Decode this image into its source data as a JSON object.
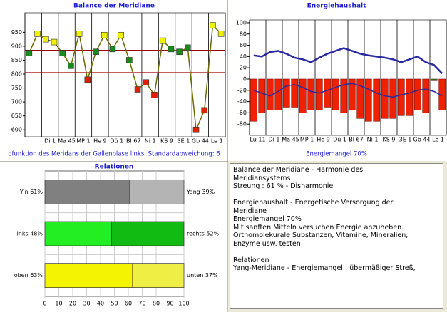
{
  "chart_data": [
    {
      "type": "line",
      "title": "Balance der Meridiane",
      "caption": "ofunktion des Meridans der Gallenblase links. Standardabweichung: 6",
      "categories": [
        null,
        null,
        "Di 1",
        null,
        "Ma 45",
        null,
        "MP 1",
        null,
        "He 9",
        null,
        "Dü 1",
        null,
        "Bl 67",
        null,
        "Ni 1",
        null,
        "KS 9",
        null,
        "3E 1",
        null,
        "Gb 44",
        null,
        "Le 1",
        null
      ],
      "series": [
        {
          "color": "#6b6b00",
          "values": [
            875,
            945,
            925,
            915,
            875,
            830,
            945,
            780,
            880,
            940,
            890,
            940,
            850,
            745,
            770,
            725,
            920,
            890,
            880,
            895,
            600,
            670,
            975,
            945
          ],
          "point_colors": [
            "#1a8a1a",
            "#f0f000",
            "#f0f000",
            "#f0f000",
            "#1a8a1a",
            "#1a8a1a",
            "#f0f000",
            "#e02000",
            "#1a8a1a",
            "#f0f000",
            "#1a8a1a",
            "#f0f000",
            "#1a8a1a",
            "#e02000",
            "#e02000",
            "#e02000",
            "#f0f000",
            "#1a8a1a",
            "#1a8a1a",
            "#1a8a1a",
            "#e02000",
            "#e02000",
            "#f0f000",
            "#f0f000"
          ]
        }
      ],
      "reference_lines": [
        885,
        805
      ],
      "reference_color": "#a00000",
      "ylim": [
        575,
        1020
      ],
      "yticks": [
        600,
        650,
        700,
        750,
        800,
        850,
        900,
        950
      ]
    },
    {
      "type": "bar",
      "title": "Energiehaushalt",
      "caption": "Energiemangel  70%",
      "categories": [
        "Lu 11",
        null,
        "Di 1",
        null,
        "Ma 45",
        null,
        "MP 1",
        null,
        "He 9",
        null,
        "Dü 1",
        null,
        "Bl 67",
        null,
        "Ni 1",
        null,
        "KS 9",
        null,
        "3E 1",
        null,
        "Gb 44",
        null,
        "Le 1",
        null
      ],
      "series": [
        {
          "kind": "bar",
          "values": [
            -75,
            -60,
            -55,
            -55,
            -50,
            -50,
            -60,
            -55,
            -55,
            -50,
            -55,
            -60,
            -55,
            -70,
            -75,
            -75,
            -70,
            -70,
            -65,
            -65,
            -55,
            -60,
            -3,
            -55
          ],
          "colors": [
            "#ee2200",
            "#ee2200",
            "#ee2200",
            "#ee2200",
            "#ee2200",
            "#ee2200",
            "#ee2200",
            "#ee2200",
            "#ee2200",
            "#ee2200",
            "#ee2200",
            "#ee2200",
            "#ee2200",
            "#ee2200",
            "#ee2200",
            "#ee2200",
            "#ee2200",
            "#ee2200",
            "#ee2200",
            "#ee2200",
            "#ee2200",
            "#ee2200",
            "#1a8a1a",
            "#ee2200"
          ]
        },
        {
          "kind": "line",
          "color": "#2a2aa0",
          "width": 2.5,
          "values": [
            42,
            40,
            48,
            50,
            45,
            38,
            35,
            30,
            38,
            45,
            50,
            55,
            50,
            45,
            42,
            40,
            38,
            35,
            30,
            35,
            40,
            30,
            25,
            10
          ]
        },
        {
          "kind": "line",
          "color": "#2a2aa0",
          "width": 1.5,
          "values": [
            -20,
            -25,
            -30,
            -22,
            -12,
            -10,
            -15,
            -22,
            -25,
            -20,
            -15,
            -10,
            -8,
            -12,
            -18,
            -25,
            -30,
            -32,
            -28,
            -25,
            -20,
            -18,
            -22,
            -30
          ]
        }
      ],
      "ylim": [
        -100,
        105
      ],
      "yticks": [
        -80,
        -60,
        -40,
        -20,
        0,
        20,
        40,
        60,
        80,
        100
      ]
    },
    {
      "type": "stacked_barh",
      "title": "Relationen",
      "rows": [
        {
          "values": [
            61,
            39
          ],
          "value_labels": [
            "Yin 61%",
            "Yang 39%"
          ],
          "colors": [
            "#808080",
            "#b4b4b4"
          ]
        },
        {
          "values": [
            48,
            52
          ],
          "value_labels": [
            "links 48%",
            "rechts 52%"
          ],
          "colors": [
            "#22ee22",
            "#11bb11"
          ]
        },
        {
          "values": [
            63,
            37
          ],
          "value_labels": [
            "oben 63%",
            "unten 37%"
          ],
          "colors": [
            "#f4f400",
            "#eeee44"
          ]
        }
      ],
      "xlim": [
        0,
        100
      ],
      "xticks": [
        0,
        10,
        20,
        30,
        40,
        50,
        60,
        70,
        80,
        90,
        100
      ]
    }
  ],
  "text_panel": {
    "paragraphs": [
      [
        "Balance der Meridiane - Harmonie des",
        "Meridiansystems",
        "Streung : 61 % - Disharmonie"
      ],
      [
        "Energiehaushalt - Energetische Versorgung der",
        "Meridiane",
        "Energiemangel  70%",
        "Mit sanften Mitteln versuchen Energie anzuheben.",
        "Orthomolekurale Substanzen, Vitamine, Mineralien,",
        "Enzyme usw. testen"
      ],
      [
        "Relationen",
        "Yang-Meridiane - Energiemangel : übermäßiger Streß,"
      ]
    ]
  }
}
